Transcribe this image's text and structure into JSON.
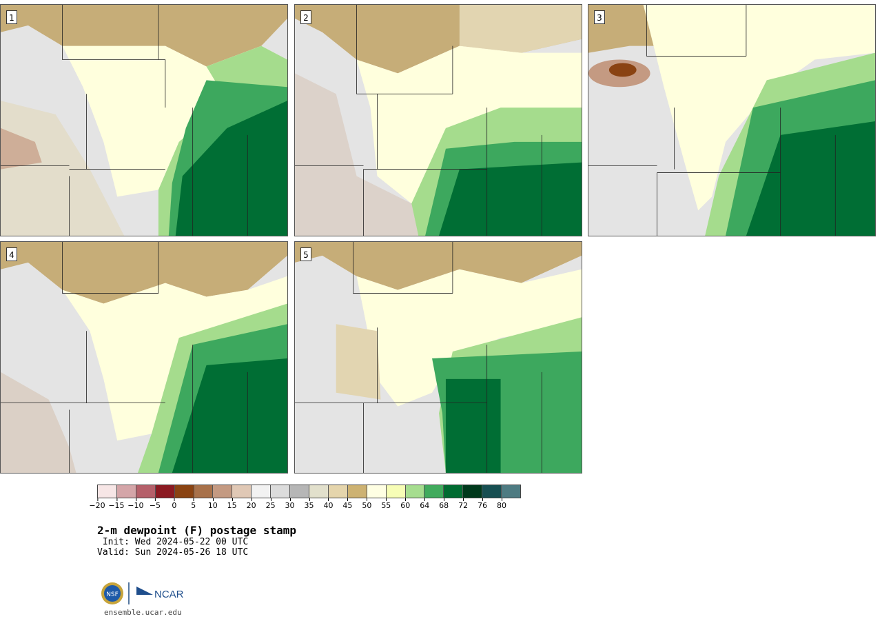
{
  "stamps": [
    {
      "num": "1",
      "palette": [
        "#c6ad78",
        "#e2d5b1",
        "#ffffdd",
        "#a5dc8d",
        "#3da85e",
        "#006e34"
      ]
    },
    {
      "num": "2",
      "palette": [
        "#c6ad78",
        "#e2d5b1",
        "#ffffdd",
        "#a5dc8d",
        "#3da85e",
        "#006e34"
      ]
    },
    {
      "num": "3",
      "palette": [
        "#c6ad78",
        "#e2d5b1",
        "#ffffdd",
        "#a5dc8d",
        "#3da85e",
        "#006e34"
      ]
    },
    {
      "num": "4",
      "palette": [
        "#c6ad78",
        "#e2d5b1",
        "#ffffdd",
        "#a5dc8d",
        "#3da85e",
        "#006e34"
      ]
    },
    {
      "num": "5",
      "palette": [
        "#c6ad78",
        "#e2d5b1",
        "#ffffdd",
        "#a5dc8d",
        "#3da85e",
        "#006e34"
      ]
    }
  ],
  "colorbar": {
    "colors": [
      "#f7e6e6",
      "#d4a5a8",
      "#b5606a",
      "#8b1a22",
      "#8a4312",
      "#a8714a",
      "#c49a82",
      "#e0c8b5",
      "#f2f2f2",
      "#dcdcdc",
      "#b6b6b6",
      "#e2e0cc",
      "#e5d5ac",
      "#cdb272",
      "#ffffe3",
      "#f7fdb6",
      "#a6dd8f",
      "#41ab5d",
      "#006b31",
      "#00391c",
      "#174f52",
      "#4e7b82"
    ],
    "ticks": [
      "−20",
      "−15",
      "−10",
      "−5",
      "0",
      "5",
      "10",
      "15",
      "20",
      "25",
      "30",
      "35",
      "40",
      "45",
      "50",
      "55",
      "60",
      "64",
      "68",
      "72",
      "76",
      "80"
    ]
  },
  "title": "2-m dewpoint (F) postage stamp",
  "init": " Init: Wed 2024-05-22 00 UTC",
  "valid": "Valid: Sun 2024-05-26 18 UTC",
  "logo": {
    "nsf": "NSF",
    "ncar": "NCAR"
  },
  "url": "ensemble.ucar.edu"
}
